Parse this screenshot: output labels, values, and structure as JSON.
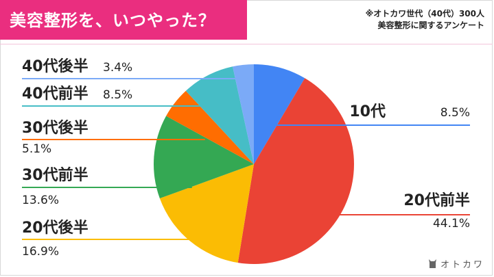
{
  "header": {
    "title": "美容整形を、いつやった？",
    "note_line1": "※オトカワ世代（40代）300人",
    "note_line2": "美容整形に関するアンケート"
  },
  "brand": {
    "name": "オトカワ",
    "icon": "cat-icon"
  },
  "colors": {
    "title_bg": "#ea2e7f"
  },
  "chart_data": {
    "type": "pie",
    "title": "美容整形を、いつやった？",
    "start": "12 o'clock, clockwise",
    "slices": [
      {
        "label": "10代",
        "value": "8.5%",
        "pct": 8.5,
        "color": "#4285f4"
      },
      {
        "label": "20代前半",
        "value": "44.1%",
        "pct": 44.1,
        "color": "#ea4335"
      },
      {
        "label": "20代後半",
        "value": "16.9%",
        "pct": 16.9,
        "color": "#fbbc04"
      },
      {
        "label": "30代前半",
        "value": "13.6%",
        "pct": 13.6,
        "color": "#34a853"
      },
      {
        "label": "30代後半",
        "value": "5.1%",
        "pct": 5.1,
        "color": "#ff6d01"
      },
      {
        "label": "40代前半",
        "value": "8.5%",
        "pct": 8.5,
        "color": "#46bdc6"
      },
      {
        "label": "40代後半",
        "value": "3.4%",
        "pct": 3.4,
        "color": "#7baaf7"
      }
    ]
  }
}
